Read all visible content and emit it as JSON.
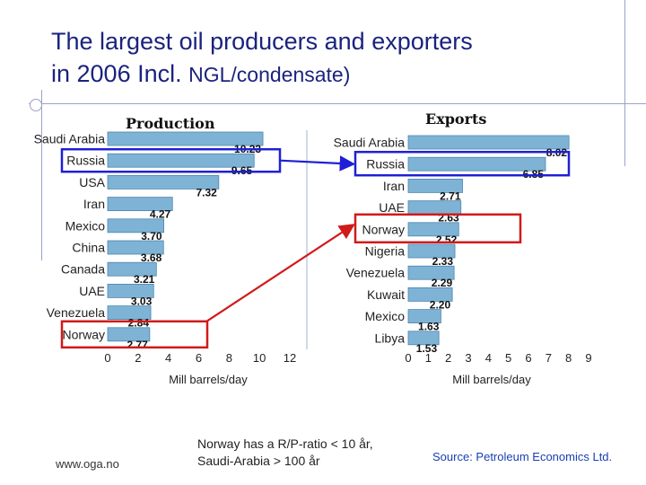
{
  "slide": {
    "title_line1": "The largest oil producers and exporters",
    "title_line2a": "in 2006 Incl. ",
    "title_line2b": "NGL/condensate)",
    "site": "www.oga.no",
    "note_line1": "Norway has a R/P-ratio < 10 år,",
    "note_line2": "Saudi-Arabia > 100 år",
    "source": "Source: Petroleum Economics Ltd."
  },
  "colors": {
    "bar": "#7fb3d5",
    "bar_edge": "#4a86b0",
    "highlight_blue": "#1f1fd6",
    "highlight_red": "#d11a1a"
  },
  "chart_data": [
    {
      "type": "bar",
      "orientation": "horizontal",
      "title": "Production",
      "categories": [
        "Saudi Arabia",
        "Russia",
        "USA",
        "Iran",
        "Mexico",
        "China",
        "Canada",
        "UAE",
        "Venezuela",
        "Norway"
      ],
      "values": [
        10.23,
        9.65,
        7.32,
        4.27,
        3.7,
        3.68,
        3.21,
        3.03,
        2.84,
        2.77
      ],
      "value_labels": [
        "10.23",
        "9.65",
        "7.32",
        "4.27",
        "3.70",
        "3.68",
        "3.21",
        "3.03",
        "2.84",
        "2.77"
      ],
      "xlabel": "Mill barrels/day",
      "xlim": [
        0,
        12
      ],
      "xticks": [
        0,
        2,
        4,
        6,
        8,
        10,
        12
      ],
      "highlight": {
        "Russia": "blue",
        "Norway": "red"
      }
    },
    {
      "type": "bar",
      "orientation": "horizontal",
      "title": "Exports",
      "categories": [
        "Saudi Arabia",
        "Russia",
        "Iran",
        "UAE",
        "Norway",
        "Nigeria",
        "Venezuela",
        "Kuwait",
        "Mexico",
        "Libya"
      ],
      "values": [
        8.02,
        6.85,
        2.71,
        2.63,
        2.52,
        2.33,
        2.29,
        2.2,
        1.63,
        1.53
      ],
      "value_labels": [
        "8.02",
        "6.85",
        "2.71",
        "2.63",
        "2.52",
        "2.33",
        "2.29",
        "2.20",
        "1.63",
        "1.53"
      ],
      "xlabel": "Mill barrels/day",
      "xlim": [
        0,
        9
      ],
      "xticks": [
        0,
        1,
        2,
        3,
        4,
        5,
        6,
        7,
        8,
        9
      ],
      "highlight": {
        "Russia": "blue",
        "Norway": "red"
      }
    }
  ]
}
